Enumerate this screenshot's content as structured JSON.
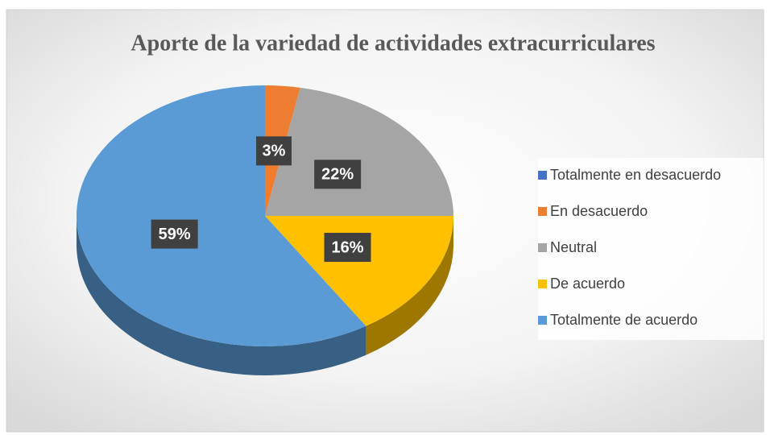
{
  "chart_data": {
    "type": "pie",
    "title": "Aporte de la variedad de actividades extracurriculares",
    "categories": [
      "Totalmente en desacuerdo",
      "En desacuerdo",
      "Neutral",
      "De acuerdo",
      "Totalmente de acuerdo"
    ],
    "values": [
      0,
      3,
      22,
      16,
      59
    ],
    "value_labels": [
      null,
      "3%",
      "22%",
      "16%",
      "59%"
    ],
    "colors": [
      "#4472c4",
      "#ed7d31",
      "#a5a5a5",
      "#ffc000",
      "#5b9bd5"
    ],
    "legend": "right"
  }
}
